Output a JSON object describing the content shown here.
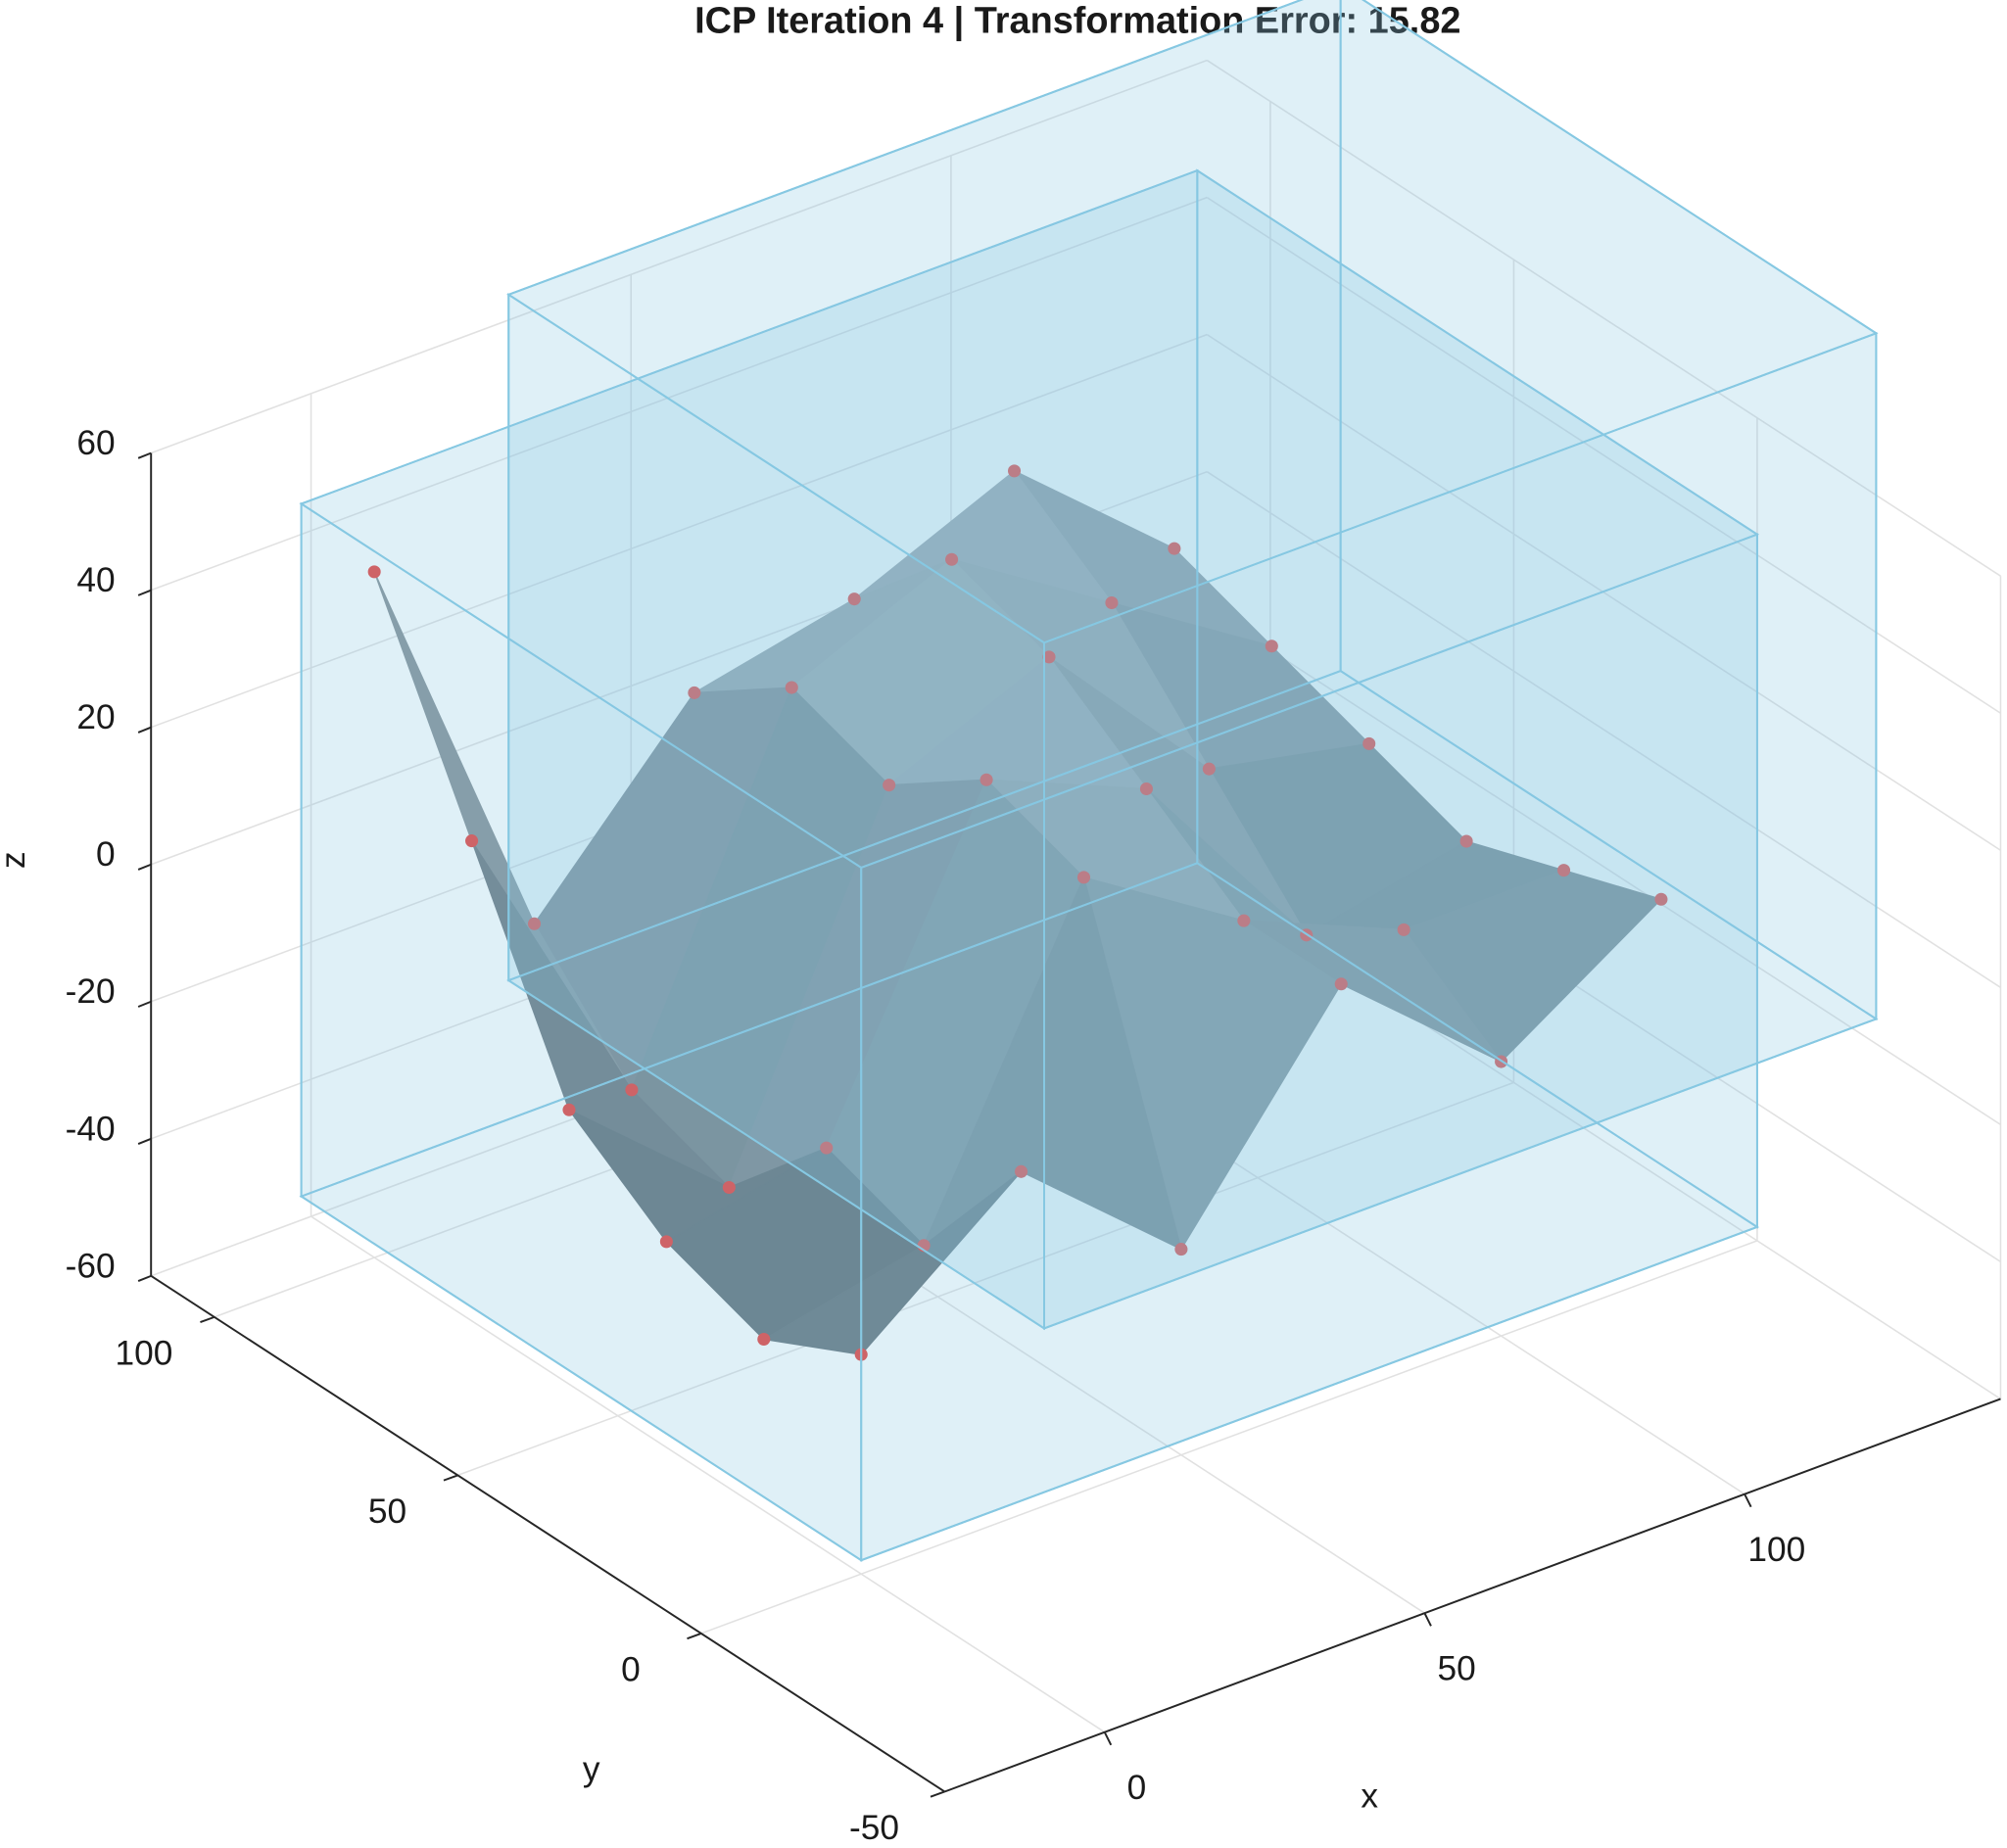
{
  "chart_data": {
    "type": "surface3d",
    "title": "ICP Iteration 4 | Transformation Error: 15.82",
    "xlabel": "x",
    "ylabel": "y",
    "zlabel": "z",
    "xlim": [
      -25,
      140
    ],
    "ylim": [
      -50,
      113
    ],
    "zlim": [
      -60,
      60
    ],
    "xticks": [
      0,
      50,
      100
    ],
    "yticks": [
      -50,
      0,
      50,
      100
    ],
    "zticks": [
      -60,
      -40,
      -20,
      0,
      20,
      40,
      60
    ],
    "grid": true,
    "x": [
      0,
      25,
      50,
      75,
      100,
      125
    ],
    "y": [
      0,
      20,
      40,
      60,
      80,
      100
    ],
    "z": [
      [
        -28,
        -10,
        -30,
        0,
        -20,
        -5
      ],
      [
        -35,
        -30,
        15,
        0,
        -10,
        -10
      ],
      [
        -30,
        -25,
        20,
        10,
        -20,
        -15
      ],
      [
        -20,
        -40,
        10,
        20,
        -5,
        -10
      ],
      [
        10,
        -35,
        15,
        25,
        10,
        -5
      ],
      [
        40,
        -20,
        5,
        10,
        20,
        0
      ]
    ],
    "colormap": [
      "#3f4f58",
      "#d0d5d9"
    ],
    "point_color": "#e8413c",
    "box_color": "#86c8e2",
    "boxes": [
      {
        "xlim": [
          0,
          140
        ],
        "ylim": [
          0,
          115
        ],
        "zlim": [
          -58,
          43
        ]
      },
      {
        "xlim": [
          40,
          170
        ],
        "ylim": [
          15,
          125
        ],
        "zlim": [
          -45,
          55
        ]
      }
    ]
  }
}
